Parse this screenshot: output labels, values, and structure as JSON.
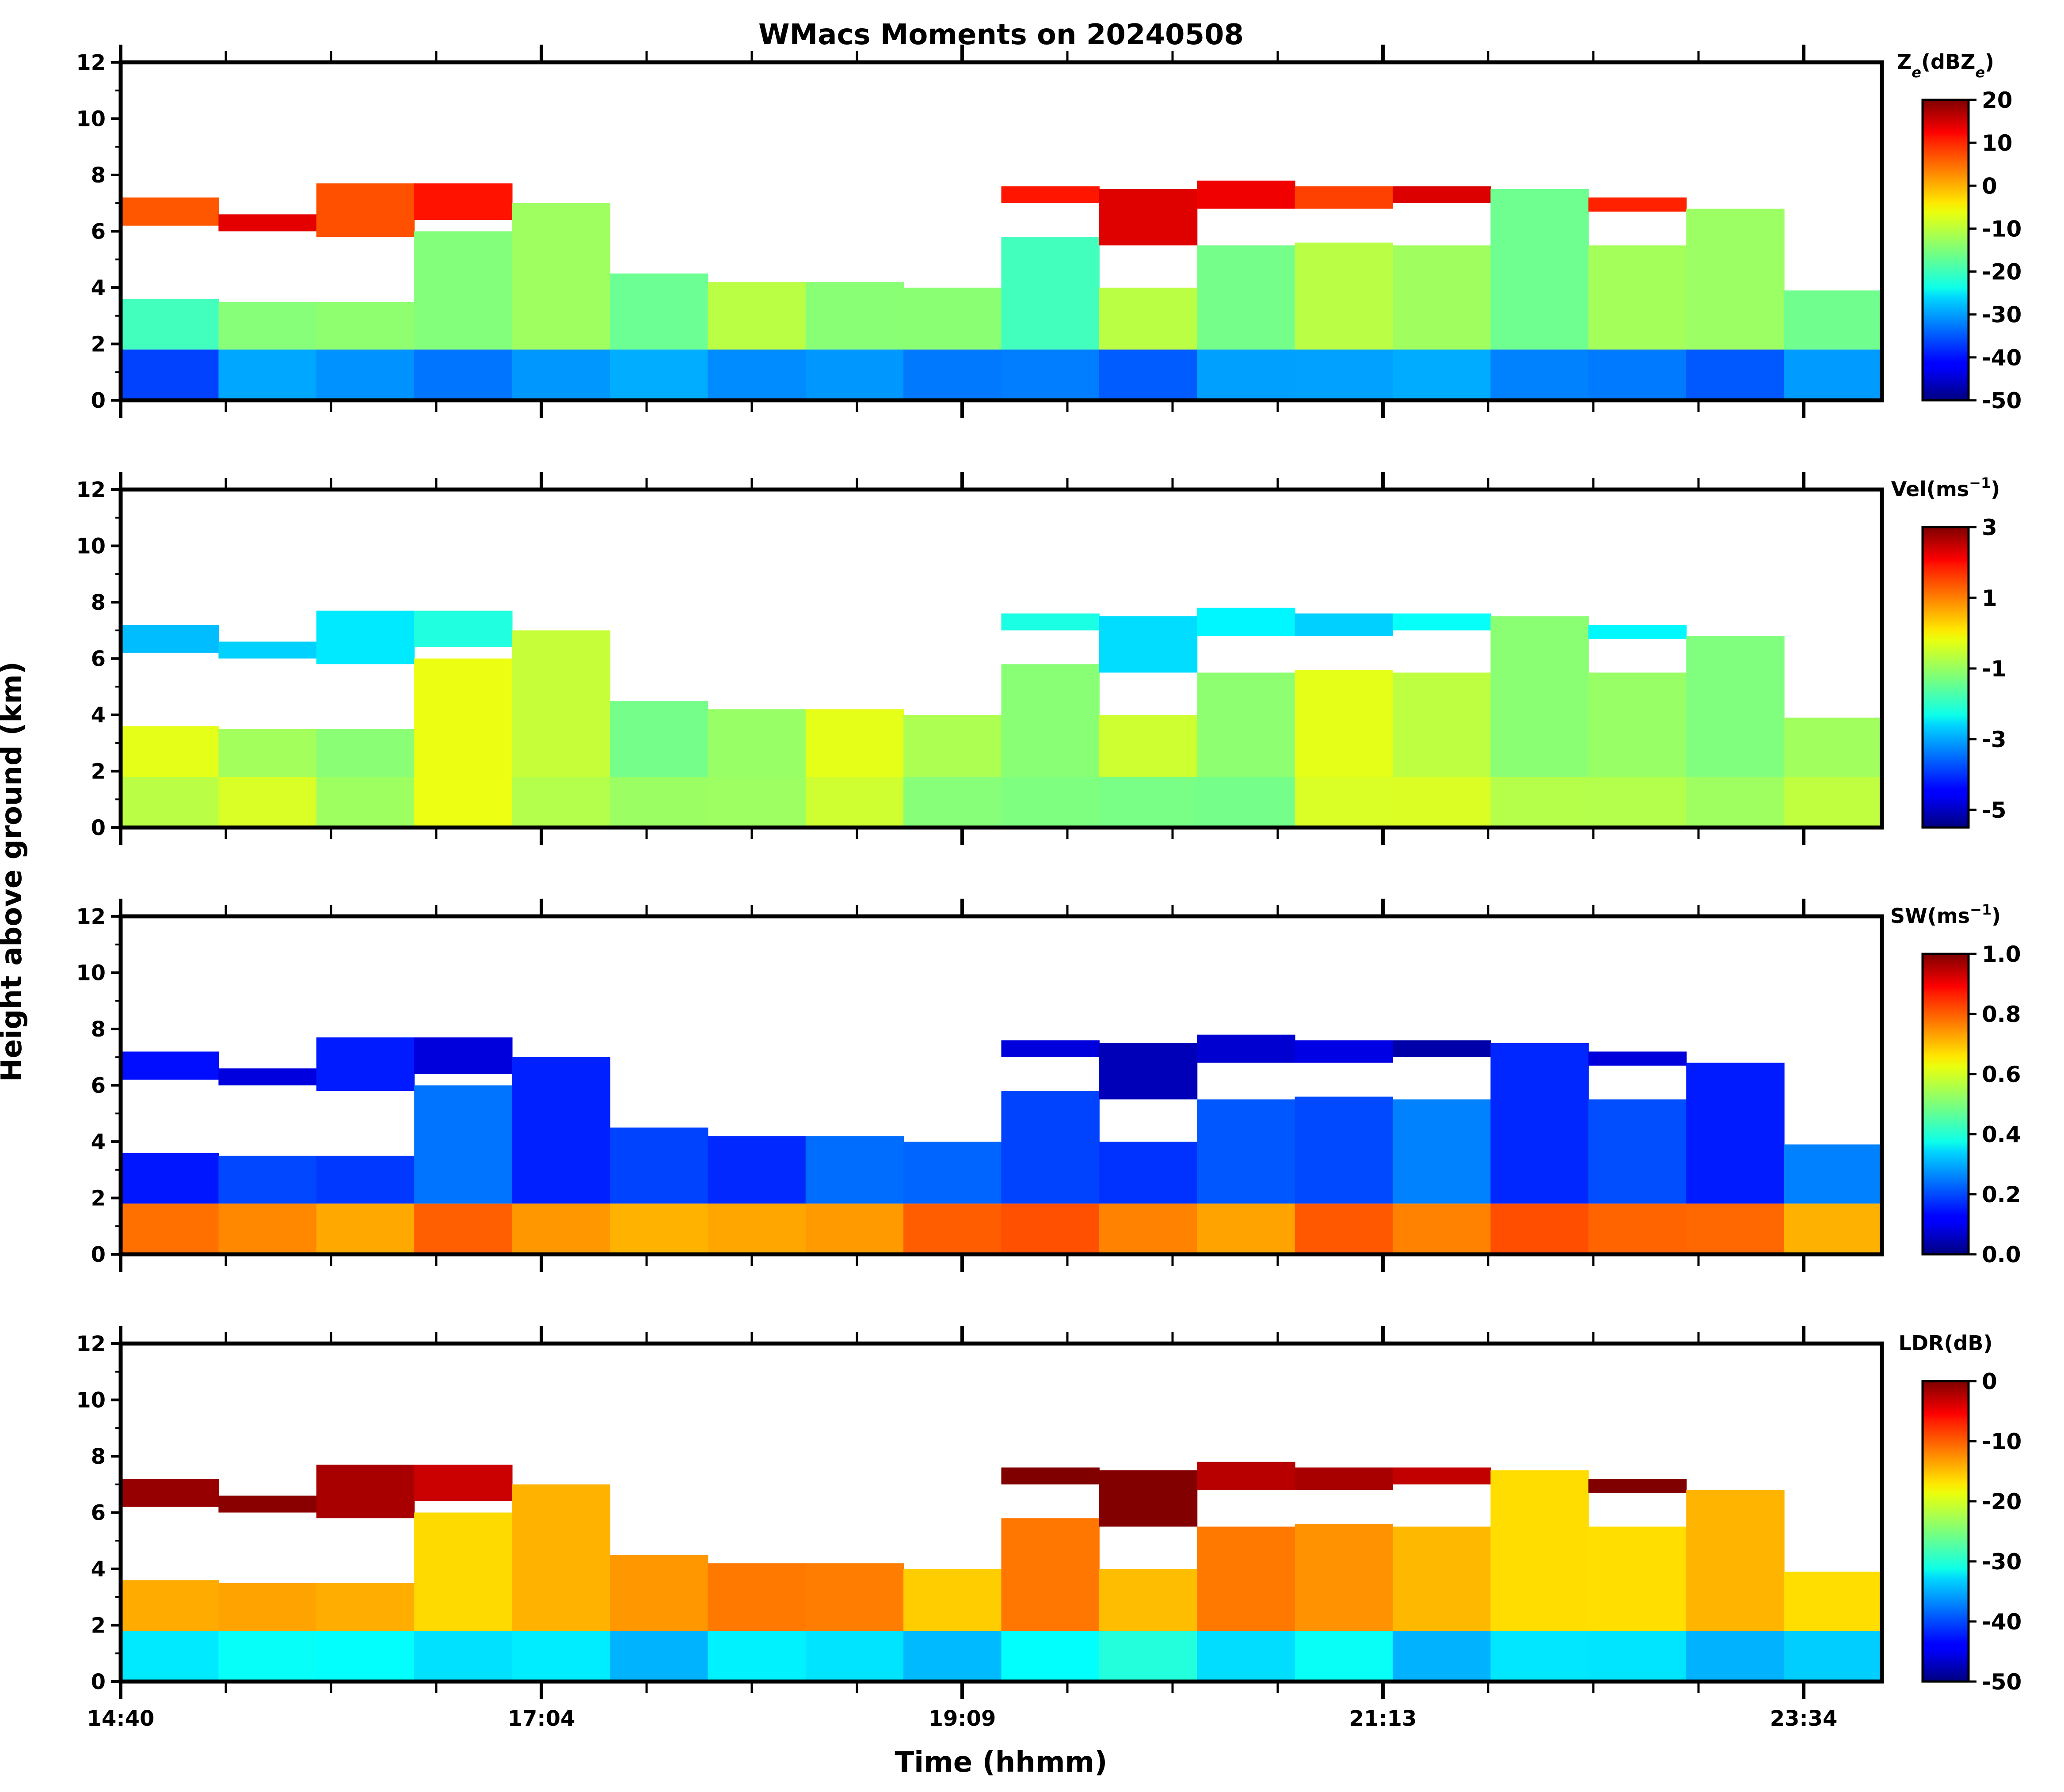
{
  "chart_data": {
    "type": "heatmap",
    "title": "WMacs Moments on 20240508",
    "xlabel": "Time (hhmm)",
    "ylabel": "Height above ground (km)",
    "x_tick_labels": [
      "14:40",
      "17:04",
      "19:09",
      "21:13",
      "23:34"
    ],
    "y_tick_labels": [
      "0",
      "2",
      "4",
      "6",
      "8",
      "10",
      "12"
    ],
    "ylim": [
      0,
      12
    ],
    "panels": [
      {
        "name": "reflectivity",
        "colorbar_label_main": "Z",
        "colorbar_label_sub": "e",
        "colorbar_label_mid": "(dBZ",
        "colorbar_label_sub2": "e",
        "colorbar_label_end": ")",
        "vmin": -50,
        "vmax": 20,
        "colorbar_ticks": [
          20,
          10,
          0,
          -10,
          -20,
          -30,
          -40,
          -50
        ],
        "colorbar_tick_labels": [
          "20",
          "10",
          "0",
          "-10",
          "-20",
          "-30",
          "-40",
          "-50"
        ],
        "low_color_value": 0.25,
        "mid_color_value": 0.5,
        "high_color_value": 0.85
      },
      {
        "name": "velocity",
        "colorbar_label": "Vel(ms",
        "colorbar_label_sup": "−1",
        "colorbar_label_end": ")",
        "vmin": -5.5,
        "vmax": 3,
        "colorbar_ticks": [
          3,
          1,
          -1,
          -3,
          -5
        ],
        "colorbar_tick_labels": [
          "3",
          "1",
          "-1",
          "-3",
          "-5"
        ],
        "low_color_value": 0.55,
        "mid_color_value": 0.55,
        "high_color_value": 0.35
      },
      {
        "name": "spectrum-width",
        "colorbar_label": "SW(ms",
        "colorbar_label_sup": "−1",
        "colorbar_label_end": ")",
        "vmin": 0,
        "vmax": 1,
        "colorbar_ticks": [
          1.0,
          0.8,
          0.6,
          0.4,
          0.2,
          0.0
        ],
        "colorbar_tick_labels": [
          "1.0",
          "0.8",
          "0.6",
          "0.4",
          "0.2",
          "0.0"
        ],
        "low_color_value": 0.75,
        "mid_color_value": 0.2,
        "high_color_value": 0.1
      },
      {
        "name": "ldr",
        "colorbar_label": "LDR(dB)",
        "vmin": -50,
        "vmax": 0,
        "colorbar_ticks": [
          0,
          -10,
          -20,
          -30,
          -40,
          -50
        ],
        "colorbar_tick_labels": [
          "0",
          "-10",
          "-20",
          "-30",
          "-40",
          "-50"
        ],
        "low_color_value": 0.35,
        "mid_color_value": 0.7,
        "high_color_value": 0.97
      }
    ]
  }
}
